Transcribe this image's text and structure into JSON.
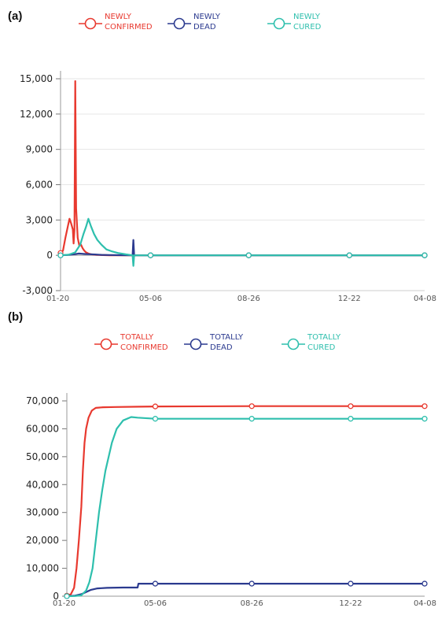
{
  "colors": {
    "confirmed": "#e8392f",
    "dead": "#2b3a8f",
    "cured": "#2ebfad",
    "axis": "#aaaaaa",
    "text": "#333333"
  },
  "chart_data": [
    {
      "panel_label": "(a)",
      "type": "line",
      "legend_position": "top",
      "grid": true,
      "legend": [
        {
          "line1": "NEWLY",
          "line2": "CONFIRMED",
          "color": "#e8392f"
        },
        {
          "line1": "NEWLY",
          "line2": "DEAD",
          "color": "#2b3a8f"
        },
        {
          "line1": "NEWLY",
          "line2": "CURED",
          "color": "#2ebfad"
        }
      ],
      "x_ticks": [
        "01-20",
        "05-06",
        "08-26",
        "12-22",
        "04-08"
      ],
      "y_ticks": [
        "15,000",
        "12,000",
        "9,000",
        "6,000",
        "3,000",
        "0",
        "-3,000"
      ],
      "ylim": [
        -3000,
        15000
      ],
      "series": [
        {
          "key": "confirmed",
          "color": "#e8392f",
          "points": [
            [
              0,
              200
            ],
            [
              3,
              400
            ],
            [
              6,
              1500
            ],
            [
              9,
              2500
            ],
            [
              11,
              3100
            ],
            [
              13,
              2700
            ],
            [
              15,
              2200
            ],
            [
              16,
              1000
            ],
            [
              17,
              2200
            ],
            [
              18,
              14800
            ],
            [
              19,
              4000
            ],
            [
              21,
              1500
            ],
            [
              23,
              800
            ],
            [
              25,
              900
            ],
            [
              27,
              600
            ],
            [
              29,
              400
            ],
            [
              31,
              250
            ],
            [
              34,
              150
            ],
            [
              38,
              80
            ],
            [
              44,
              40
            ],
            [
              52,
              20
            ],
            [
              60,
              0
            ],
            [
              110,
              0
            ],
            [
              230,
              0
            ],
            [
              353,
              0
            ],
            [
              445,
              0
            ]
          ]
        },
        {
          "key": "dead",
          "color": "#2b3a8f",
          "points": [
            [
              0,
              0
            ],
            [
              10,
              40
            ],
            [
              18,
              100
            ],
            [
              22,
              150
            ],
            [
              26,
              130
            ],
            [
              30,
              110
            ],
            [
              36,
              90
            ],
            [
              42,
              70
            ],
            [
              50,
              40
            ],
            [
              60,
              25
            ],
            [
              75,
              10
            ],
            [
              88,
              0
            ],
            [
              89,
              1300
            ],
            [
              90,
              0
            ],
            [
              110,
              0
            ],
            [
              230,
              0
            ],
            [
              353,
              0
            ],
            [
              445,
              0
            ]
          ]
        },
        {
          "key": "cured",
          "color": "#2ebfad",
          "points": [
            [
              0,
              0
            ],
            [
              10,
              50
            ],
            [
              18,
              250
            ],
            [
              24,
              900
            ],
            [
              28,
              1800
            ],
            [
              31,
              2400
            ],
            [
              34,
              3100
            ],
            [
              37,
              2500
            ],
            [
              41,
              1800
            ],
            [
              45,
              1300
            ],
            [
              50,
              900
            ],
            [
              56,
              500
            ],
            [
              62,
              350
            ],
            [
              70,
              200
            ],
            [
              80,
              80
            ],
            [
              88,
              0
            ],
            [
              89,
              -900
            ],
            [
              90,
              0
            ],
            [
              110,
              0
            ],
            [
              230,
              0
            ],
            [
              353,
              0
            ],
            [
              445,
              0
            ]
          ]
        }
      ]
    },
    {
      "panel_label": "(b)",
      "type": "line",
      "legend_position": "top",
      "grid": false,
      "legend": [
        {
          "line1": "TOTALLY",
          "line2": "CONFIRMED",
          "color": "#e8392f"
        },
        {
          "line1": "TOTALLY",
          "line2": "DEAD",
          "color": "#2b3a8f"
        },
        {
          "line1": "TOTALLY",
          "line2": "CURED",
          "color": "#2ebfad"
        }
      ],
      "x_ticks": [
        "01-20",
        "05-06",
        "08-26",
        "12-22",
        "04-08"
      ],
      "y_ticks": [
        "70,000",
        "60,000",
        "50,000",
        "40,000",
        "30,000",
        "20,000",
        "10,000",
        "0"
      ],
      "ylim": [
        0,
        70000
      ],
      "series": [
        {
          "key": "confirmed",
          "color": "#e8392f",
          "points": [
            [
              0,
              200
            ],
            [
              5,
              700
            ],
            [
              9,
              3000
            ],
            [
              12,
              10000
            ],
            [
              15,
              20000
            ],
            [
              18,
              32000
            ],
            [
              20,
              45000
            ],
            [
              22,
              55000
            ],
            [
              24,
              60000
            ],
            [
              27,
              64000
            ],
            [
              31,
              66500
            ],
            [
              36,
              67500
            ],
            [
              45,
              67700
            ],
            [
              60,
              67800
            ],
            [
              90,
              67900
            ],
            [
              110,
              68000
            ],
            [
              230,
              68100
            ],
            [
              353,
              68100
            ],
            [
              445,
              68100
            ]
          ]
        },
        {
          "key": "dead",
          "color": "#2b3a8f",
          "points": [
            [
              0,
              0
            ],
            [
              10,
              200
            ],
            [
              18,
              700
            ],
            [
              24,
              1500
            ],
            [
              30,
              2300
            ],
            [
              38,
              2800
            ],
            [
              50,
              3000
            ],
            [
              70,
              3100
            ],
            [
              88,
              3100
            ],
            [
              89,
              4500
            ],
            [
              110,
              4500
            ],
            [
              230,
              4500
            ],
            [
              353,
              4500
            ],
            [
              445,
              4500
            ]
          ]
        },
        {
          "key": "cured",
          "color": "#2ebfad",
          "points": [
            [
              0,
              0
            ],
            [
              10,
              50
            ],
            [
              18,
              300
            ],
            [
              24,
              2000
            ],
            [
              28,
              5000
            ],
            [
              32,
              10000
            ],
            [
              36,
              20000
            ],
            [
              40,
              30000
            ],
            [
              44,
              38000
            ],
            [
              48,
              45000
            ],
            [
              52,
              50000
            ],
            [
              56,
              55000
            ],
            [
              62,
              60000
            ],
            [
              70,
              63000
            ],
            [
              80,
              64200
            ],
            [
              88,
              64000
            ],
            [
              110,
              63600
            ],
            [
              230,
              63600
            ],
            [
              353,
              63600
            ],
            [
              445,
              63600
            ]
          ]
        }
      ]
    }
  ]
}
